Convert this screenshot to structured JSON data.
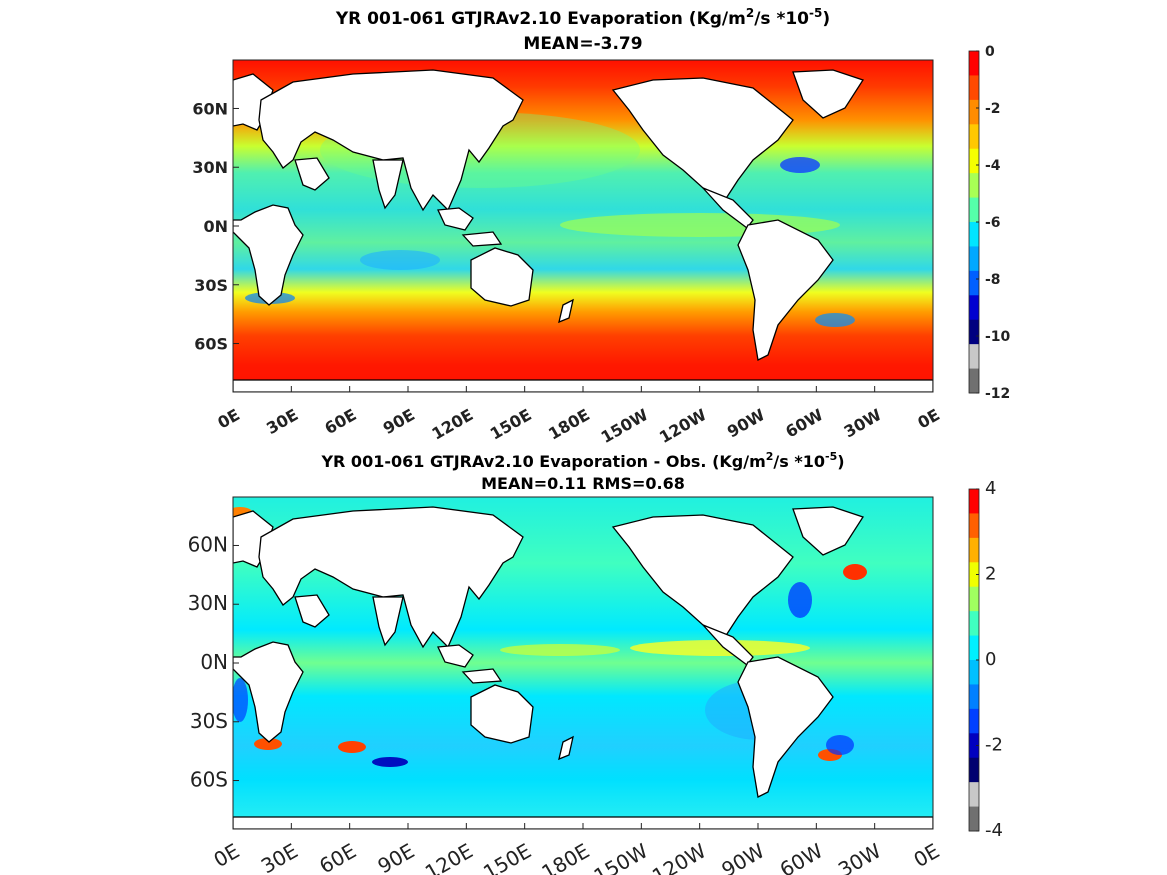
{
  "chart_data": [
    {
      "type": "heatmap",
      "title_main": "YR 001-061 GTJRAv2.10  Evaporation (Kg/m",
      "title_sup1": "2",
      "title_mid": "/s *10",
      "title_sup2": "-5",
      "title_end": ")",
      "subtitle": "MEAN=-3.79",
      "x_ticks": [
        "0E",
        "30E",
        "60E",
        "90E",
        "120E",
        "150E",
        "180E",
        "150W",
        "120W",
        "90W",
        "60W",
        "30W",
        "0E"
      ],
      "y_ticks": [
        "60N",
        "30N",
        "0N",
        "30S",
        "60S"
      ],
      "colorbar": {
        "range": [
          -12,
          0
        ],
        "ticks": [
          "0",
          "-2",
          "-4",
          "-6",
          "-8",
          "-10",
          "-12"
        ],
        "colors": [
          "#ff0000",
          "#ff4a00",
          "#ff8c00",
          "#ffc800",
          "#f5ff00",
          "#a8ff55",
          "#55ffaa",
          "#00e5ff",
          "#00a8ff",
          "#0060ff",
          "#0000d0",
          "#000080",
          "#c8c8c8",
          "#707070"
        ]
      },
      "colors": {
        "land": "#ffffff",
        "ocean_dominant": "#40e0c0",
        "high_lat": "#ff2000"
      }
    },
    {
      "type": "heatmap",
      "title_main": "YR 001-061 GTJRAv2.10 Evaporation - Obs. (Kg/m",
      "title_sup1": "2",
      "title_mid": "/s *10",
      "title_sup2": "-5",
      "title_end": ")",
      "subtitle": "MEAN=0.11   RMS=0.68",
      "x_ticks": [
        "0E",
        "30E",
        "60E",
        "90E",
        "120E",
        "150E",
        "180E",
        "150W",
        "120W",
        "90W",
        "60W",
        "30W",
        "0E"
      ],
      "y_ticks": [
        "60N",
        "30N",
        "0N",
        "30S",
        "60S"
      ],
      "colorbar": {
        "range": [
          -4,
          4
        ],
        "ticks": [
          "4",
          "2",
          "0",
          "-2",
          "-4"
        ],
        "colors": [
          "#ff0000",
          "#ff6000",
          "#ffb000",
          "#f0ff00",
          "#a0ff60",
          "#40ffc0",
          "#00f0ff",
          "#00c0ff",
          "#0080ff",
          "#0040ff",
          "#0000c0",
          "#000070",
          "#c8c8c8",
          "#707070"
        ]
      },
      "colors": {
        "land": "#ffffff",
        "ocean_dominant": "#00eaff",
        "anomaly_pos": "#ff3000",
        "anomaly_neg": "#0020ff"
      }
    }
  ]
}
